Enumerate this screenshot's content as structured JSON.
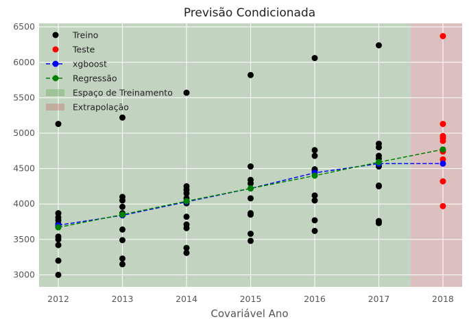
{
  "chart_data": {
    "type": "scatter",
    "title": "Previsão Condicionada",
    "xlabel": "Covariável Ano",
    "ylabel": "",
    "xlim": [
      2011.7,
      2018.3
    ],
    "ylim": [
      2830,
      6550
    ],
    "xticks": [
      2012,
      2013,
      2014,
      2015,
      2016,
      2017,
      2018
    ],
    "yticks": [
      3000,
      3500,
      4000,
      4500,
      5000,
      5500,
      6000,
      6500
    ],
    "grid": true,
    "legend_position": "top-left",
    "regions": [
      {
        "name": "Espaço de Treinamento",
        "x_range": [
          2011.7,
          2017.5
        ],
        "color": "#4a9a3a"
      },
      {
        "name": "Extrapolação",
        "x_range": [
          2017.5,
          2018.3
        ],
        "color": "#c25050"
      }
    ],
    "series": [
      {
        "name": "Treino",
        "kind": "points",
        "color": "#000000",
        "points": [
          [
            2012,
            5130
          ],
          [
            2012,
            3870
          ],
          [
            2012,
            3810
          ],
          [
            2012,
            3770
          ],
          [
            2012,
            3720
          ],
          [
            2012,
            3680
          ],
          [
            2012,
            3540
          ],
          [
            2012,
            3500
          ],
          [
            2012,
            3420
          ],
          [
            2012,
            3200
          ],
          [
            2012,
            3000
          ],
          [
            2013,
            5220
          ],
          [
            2013,
            4100
          ],
          [
            2013,
            4050
          ],
          [
            2013,
            3960
          ],
          [
            2013,
            3870
          ],
          [
            2013,
            3840
          ],
          [
            2013,
            3640
          ],
          [
            2013,
            3490
          ],
          [
            2013,
            3230
          ],
          [
            2013,
            3150
          ],
          [
            2014,
            5570
          ],
          [
            2014,
            4250
          ],
          [
            2014,
            4200
          ],
          [
            2014,
            4150
          ],
          [
            2014,
            4080
          ],
          [
            2014,
            4010
          ],
          [
            2014,
            3820
          ],
          [
            2014,
            3710
          ],
          [
            2014,
            3660
          ],
          [
            2014,
            3380
          ],
          [
            2014,
            3310
          ],
          [
            2015,
            5820
          ],
          [
            2015,
            4530
          ],
          [
            2015,
            4340
          ],
          [
            2015,
            4290
          ],
          [
            2015,
            4080
          ],
          [
            2015,
            3870
          ],
          [
            2015,
            3850
          ],
          [
            2015,
            3580
          ],
          [
            2015,
            3480
          ],
          [
            2016,
            6060
          ],
          [
            2016,
            4760
          ],
          [
            2016,
            4680
          ],
          [
            2016,
            4490
          ],
          [
            2016,
            4470
          ],
          [
            2016,
            4120
          ],
          [
            2016,
            4050
          ],
          [
            2016,
            3770
          ],
          [
            2016,
            3620
          ],
          [
            2017,
            6240
          ],
          [
            2017,
            4850
          ],
          [
            2017,
            4800
          ],
          [
            2017,
            4680
          ],
          [
            2017,
            4640
          ],
          [
            2017,
            4560
          ],
          [
            2017,
            4530
          ],
          [
            2017,
            4260
          ],
          [
            2017,
            4250
          ],
          [
            2017,
            3760
          ],
          [
            2017,
            3730
          ]
        ]
      },
      {
        "name": "Teste",
        "kind": "points",
        "color": "#ff0000",
        "points": [
          [
            2018,
            6370
          ],
          [
            2018,
            5130
          ],
          [
            2018,
            4960
          ],
          [
            2018,
            4930
          ],
          [
            2018,
            4890
          ],
          [
            2018,
            4740
          ],
          [
            2018,
            4630
          ],
          [
            2018,
            4320
          ],
          [
            2018,
            3970
          ]
        ]
      },
      {
        "name": "xgboost",
        "kind": "dashed-line-markers",
        "color": "#0000ff",
        "points": [
          [
            2012,
            3700
          ],
          [
            2013,
            3840
          ],
          [
            2014,
            4030
          ],
          [
            2015,
            4220
          ],
          [
            2016,
            4440
          ],
          [
            2017,
            4570
          ],
          [
            2018,
            4570
          ]
        ]
      },
      {
        "name": "Regressão",
        "kind": "dashed-line-markers",
        "color": "#008000",
        "points": [
          [
            2012,
            3670
          ],
          [
            2013,
            3850
          ],
          [
            2014,
            4040
          ],
          [
            2015,
            4220
          ],
          [
            2016,
            4400
          ],
          [
            2017,
            4590
          ],
          [
            2018,
            4770
          ]
        ]
      }
    ]
  }
}
